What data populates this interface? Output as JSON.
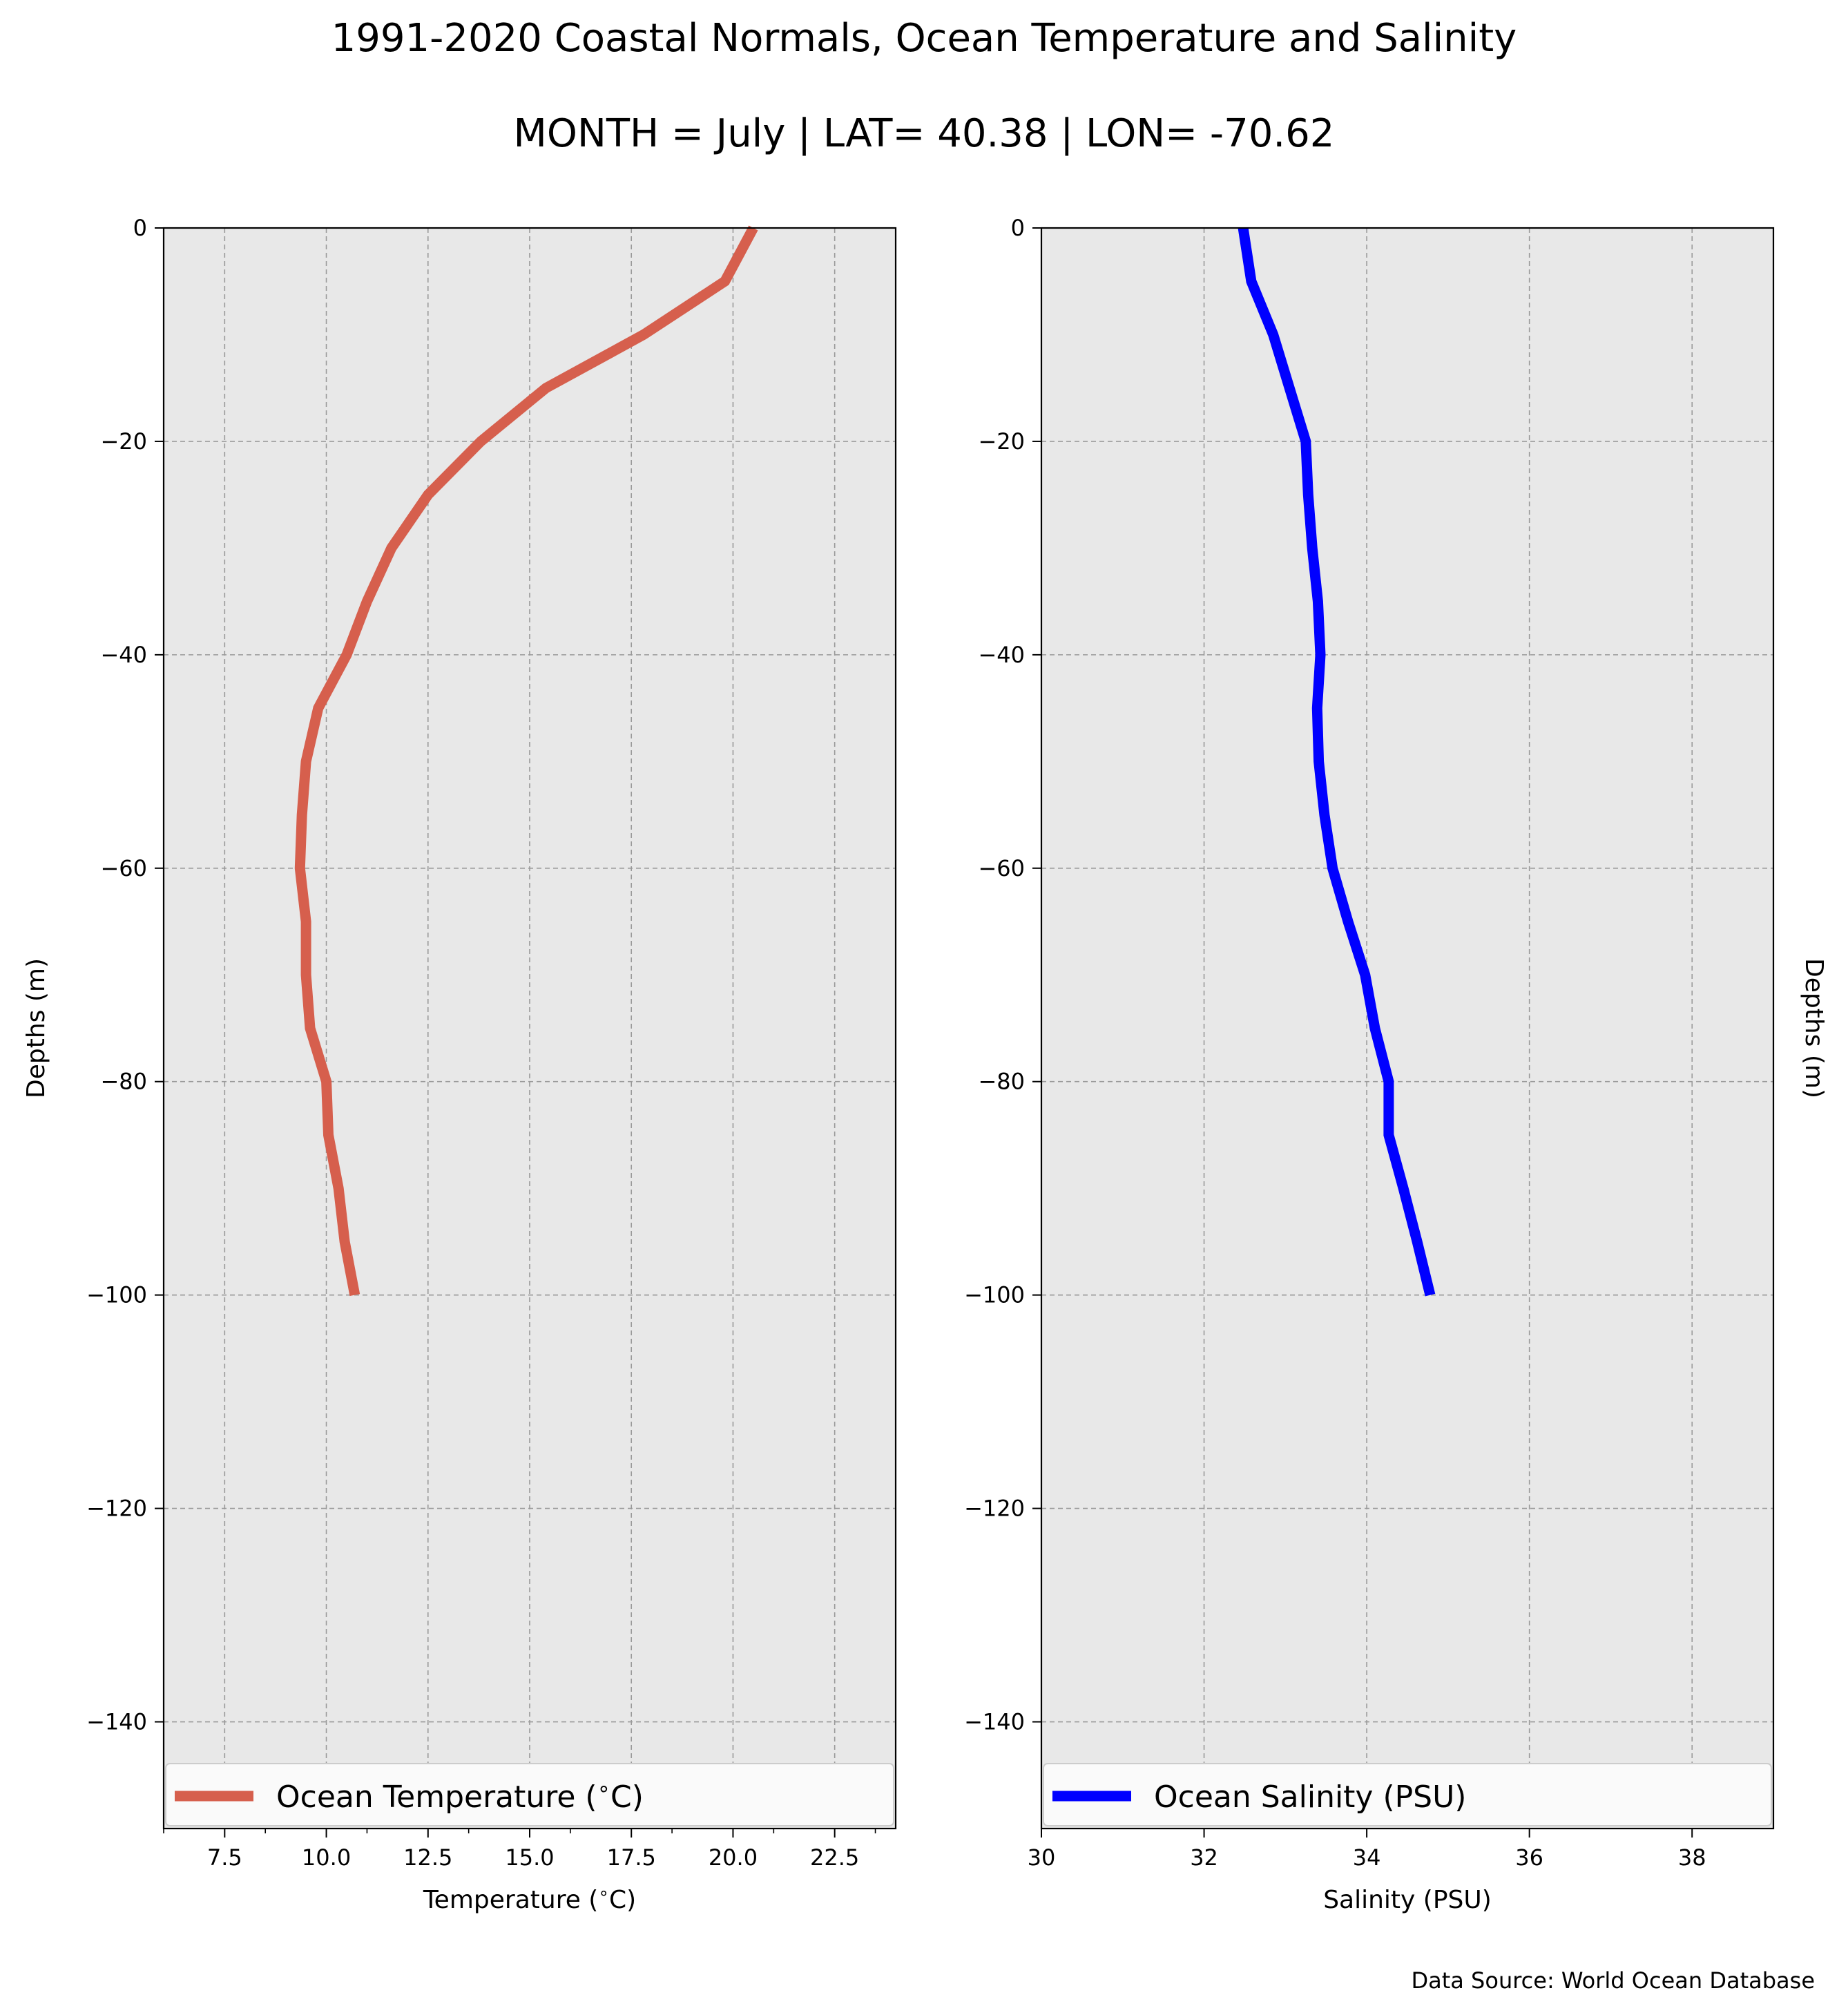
{
  "title": "1991-2020 Coastal Normals, Ocean Temperature and Salinity",
  "subtitle": "MONTH = July | LAT= 40.38 | LON= -70.62",
  "source_note": "Data Source: World Ocean Database",
  "colors": {
    "background": "#ffffff",
    "plot_bg": "#e8e8e8",
    "grid": "#999999",
    "temperature": "#d65f4d",
    "salinity": "#0000ff"
  },
  "chart_data": [
    {
      "type": "line",
      "xlabel": "Temperature ($^\\circ$C)",
      "ylabel": "Depths (m)",
      "ylabel_side": "left",
      "xlim": [
        6,
        24
      ],
      "ylim": [
        -150,
        0
      ],
      "xticks": [
        7.5,
        10.0,
        12.5,
        15.0,
        17.5,
        20.0,
        22.5
      ],
      "xtick_labels": [
        "7.5",
        "10.0",
        "12.5",
        "15.0",
        "17.5",
        "20.0",
        "22.5"
      ],
      "xminor_ticks": [
        6,
        8.5,
        11,
        13.5,
        16,
        18.5,
        21,
        23.5
      ],
      "yticks": [
        0,
        -20,
        -40,
        -60,
        -80,
        -100,
        -120,
        -140
      ],
      "ytick_labels": [
        "0",
        "−20",
        "−40",
        "−60",
        "−80",
        "−100",
        "−120",
        "−140"
      ],
      "grid": true,
      "legend_position": "bottom",
      "series": [
        {
          "name": "Ocean Temperature ($^\\circ$C)",
          "color": "#d65f4d",
          "x": [
            20.5,
            19.8,
            17.8,
            15.4,
            13.8,
            12.5,
            11.6,
            11.0,
            10.5,
            9.8,
            9.5,
            9.4,
            9.35,
            9.5,
            9.5,
            9.6,
            10.0,
            10.05,
            10.3,
            10.45,
            10.7
          ],
          "y": [
            0,
            -5,
            -10,
            -15,
            -20,
            -25,
            -30,
            -35,
            -40,
            -45,
            -50,
            -55,
            -60,
            -65,
            -70,
            -75,
            -80,
            -85,
            -90,
            -95,
            -100
          ]
        }
      ]
    },
    {
      "type": "line",
      "xlabel": "Salinity (PSU)",
      "ylabel": "Depths (m)",
      "ylabel_side": "right",
      "xlim": [
        30,
        39
      ],
      "ylim": [
        -150,
        0
      ],
      "xticks": [
        30,
        32,
        34,
        36,
        38
      ],
      "xtick_labels": [
        "30",
        "32",
        "34",
        "36",
        "38"
      ],
      "xminor_ticks": [],
      "yticks": [
        0,
        -20,
        -40,
        -60,
        -80,
        -100,
        -120,
        -140
      ],
      "ytick_labels": [
        "0",
        "−20",
        "−40",
        "−60",
        "−80",
        "−100",
        "−120",
        "−140"
      ],
      "grid": true,
      "legend_position": "bottom",
      "series": [
        {
          "name": "Ocean Salinity (PSU)",
          "color": "#0000ff",
          "x": [
            32.48,
            32.58,
            32.85,
            33.05,
            33.25,
            33.28,
            33.33,
            33.4,
            33.43,
            33.39,
            33.41,
            33.48,
            33.58,
            33.77,
            33.98,
            34.1,
            34.27,
            34.27,
            34.45,
            34.62,
            34.78
          ],
          "y": [
            0,
            -5,
            -10,
            -15,
            -20,
            -25,
            -30,
            -35,
            -40,
            -45,
            -50,
            -55,
            -60,
            -65,
            -70,
            -75,
            -80,
            -85,
            -90,
            -95,
            -100
          ]
        }
      ]
    }
  ]
}
